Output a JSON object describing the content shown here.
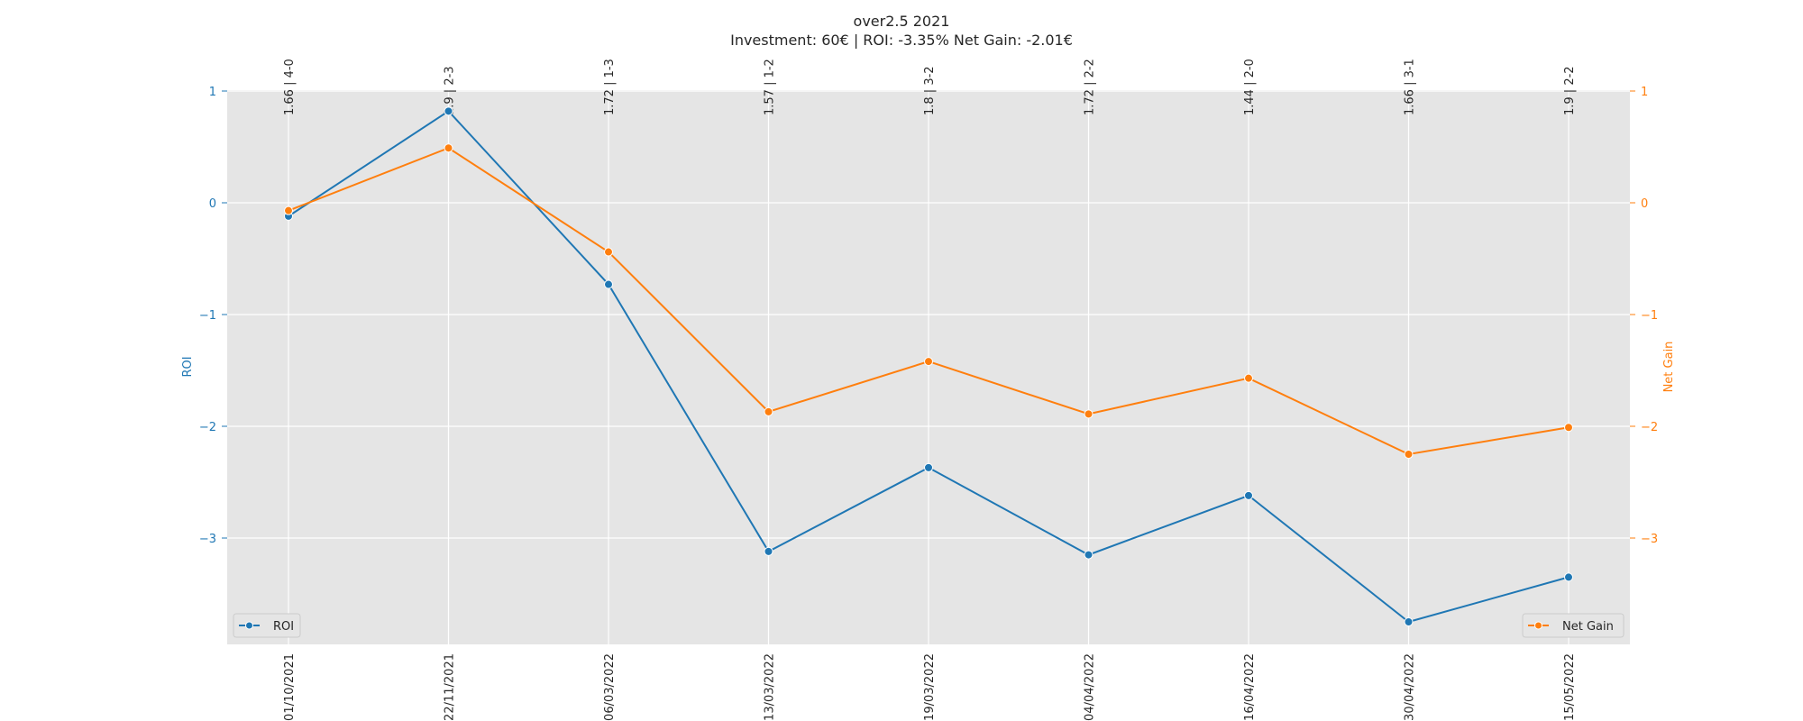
{
  "chart_data": {
    "type": "line",
    "title": "over2.5 2021",
    "subtitle": "Investment: 60€ | ROI: -3.35% Net Gain: -2.01€",
    "categories": [
      "01/10/2021",
      "22/11/2021",
      "06/03/2022",
      "13/03/2022",
      "19/03/2022",
      "04/04/2022",
      "16/04/2022",
      "30/04/2022",
      "15/05/2022"
    ],
    "top_labels": [
      "1.66 | 4-0",
      "1.9 | 2-3",
      "1.72 | 1-3",
      "1.57 | 1-2",
      "1.8 | 3-2",
      "1.72 | 2-2",
      "1.44 | 2-0",
      "1.66 | 3-1",
      "1.9 | 2-2"
    ],
    "series": [
      {
        "name": "ROI",
        "axis": "left",
        "color": "#1f77b4",
        "values": [
          -0.12,
          0.82,
          -0.73,
          -3.12,
          -2.37,
          -3.15,
          -2.62,
          -3.75,
          -3.35
        ]
      },
      {
        "name": "Net Gain",
        "axis": "right",
        "color": "#ff7f0e",
        "values": [
          -0.07,
          0.49,
          -0.44,
          -1.87,
          -1.42,
          -1.89,
          -1.57,
          -2.25,
          -2.01
        ]
      }
    ],
    "ylabel_left": "ROI",
    "ylabel_right": "Net Gain",
    "ylim": [
      -3.95,
      1.0
    ],
    "yticks": [
      1,
      0,
      -1,
      -2,
      -3
    ],
    "ytick_labels": [
      "1",
      "0",
      "−1",
      "−2",
      "−3"
    ],
    "grid": true,
    "legend_left": "lower left",
    "legend_right": "lower right"
  }
}
